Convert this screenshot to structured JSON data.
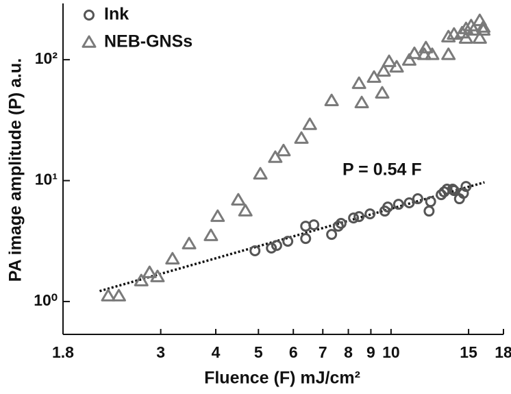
{
  "chart_data": {
    "type": "scatter",
    "xlabel": "Fluence (F) mJ/cm²",
    "ylabel": "PA image amplitude (P) a.u.",
    "annotation": "P = 0.54 F",
    "xscale": "log",
    "yscale": "log",
    "xlim": [
      1.8,
      18
    ],
    "ylim": [
      0.535,
      292
    ],
    "xticks": [
      1.8,
      3,
      4,
      5,
      6,
      7,
      8,
      9,
      10,
      15,
      18
    ],
    "yticks": [
      {
        "value": 1,
        "label": "10⁰"
      },
      {
        "value": 10,
        "label": "10¹"
      },
      {
        "value": 100,
        "label": "10²"
      }
    ],
    "legend": "upper left",
    "series": [
      {
        "name": "Ink",
        "color": "#555555",
        "marker": "circle",
        "x": [
          4.91,
          5.35,
          5.5,
          5.83,
          6.4,
          6.4,
          6.68,
          7.33,
          7.59,
          7.7,
          8.22,
          8.46,
          8.96,
          9.68,
          9.83,
          10.4,
          11.0,
          11.5,
          12.3,
          12.2,
          13.0,
          13.2,
          13.4,
          13.8,
          13.9,
          14.3,
          14.6,
          14.8
        ],
        "y": [
          2.63,
          2.77,
          2.91,
          3.15,
          4.2,
          3.32,
          4.31,
          3.59,
          4.2,
          4.43,
          4.91,
          5.04,
          5.31,
          5.6,
          6.05,
          6.37,
          6.55,
          7.08,
          6.71,
          5.6,
          7.65,
          8.07,
          8.5,
          8.5,
          8.28,
          7.08,
          7.86,
          8.95
        ]
      },
      {
        "name": "NEB-GNSs",
        "color": "#7a7a7a",
        "marker": "triangle",
        "x": [
          2.28,
          2.41,
          2.71,
          2.83,
          2.95,
          3.19,
          3.48,
          3.9,
          4.04,
          4.5,
          4.67,
          5.05,
          5.46,
          5.7,
          6.26,
          6.54,
          7.33,
          8.58,
          8.46,
          9.15,
          9.55,
          9.62,
          9.9,
          10.3,
          11.0,
          11.3,
          11.9,
          12.0,
          12.4,
          13.5,
          13.5,
          13.9,
          14.5,
          14.8,
          14.8,
          15.2,
          15.4,
          15.9,
          15.9,
          16.2,
          16.2
        ],
        "y": [
          1.11,
          1.11,
          1.48,
          1.73,
          1.6,
          2.24,
          2.99,
          3.5,
          5.04,
          6.89,
          5.6,
          11.3,
          15.5,
          17.6,
          22.3,
          29.0,
          45.7,
          43.9,
          63.4,
          71.3,
          52.8,
          80.1,
          96.2,
          86.7,
          98.7,
          112,
          110,
          125,
          110,
          154,
          110,
          162,
          166,
          180,
          150,
          190,
          175,
          210,
          150,
          185,
          175
        ]
      }
    ],
    "fit": {
      "x": [
        2.18,
        16.3
      ],
      "y": [
        1.22,
        9.68
      ]
    }
  }
}
